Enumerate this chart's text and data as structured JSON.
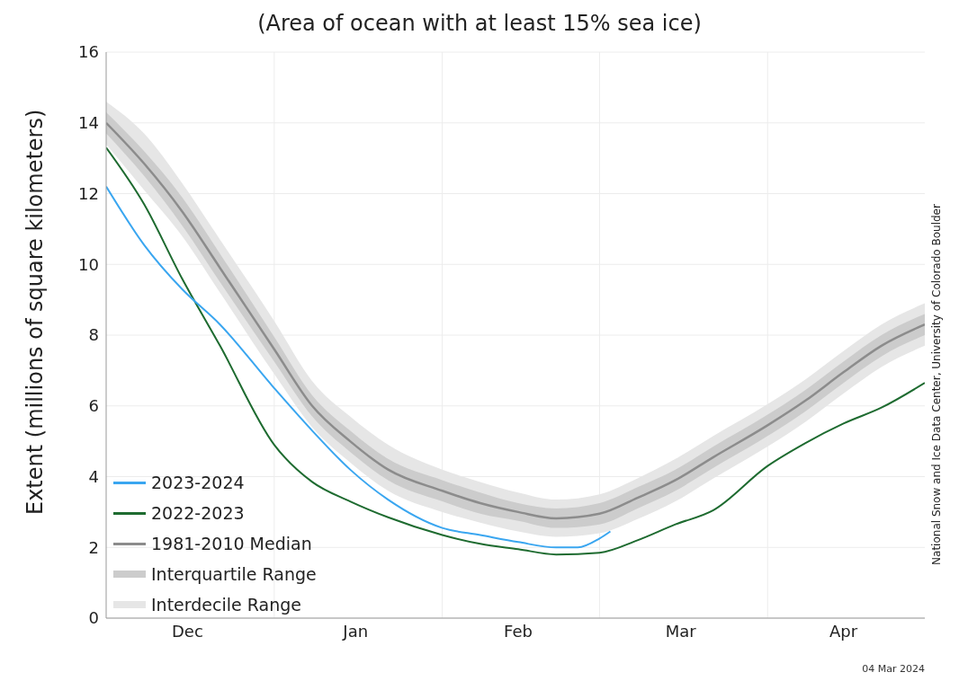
{
  "chart_data": {
    "type": "line",
    "subtitle": "(Area of ocean with at least 15% sea ice)",
    "ylabel": "Extent (millions of square kilometers)",
    "x": [
      "2023-12-01",
      "2023-12-08",
      "2023-12-15",
      "2023-12-22",
      "2024-01-01",
      "2024-01-08",
      "2024-01-15",
      "2024-01-22",
      "2024-02-01",
      "2024-02-08",
      "2024-02-15",
      "2024-02-22",
      "2024-03-01",
      "2024-03-08",
      "2024-03-15",
      "2024-03-22",
      "2024-04-01",
      "2024-04-08",
      "2024-04-15",
      "2024-04-22",
      "2024-04-30"
    ],
    "series": [
      {
        "name": "Interdecile Range",
        "color": "#e6e6e6",
        "values": [
          null,
          null,
          null,
          null,
          null,
          null,
          null,
          null,
          null,
          null,
          null,
          null,
          null,
          null,
          null,
          null,
          null,
          null,
          null,
          null,
          null
        ],
        "lower": [
          13.4,
          12.1,
          10.8,
          9.2,
          6.9,
          5.4,
          4.4,
          3.6,
          3.0,
          2.7,
          2.45,
          2.3,
          2.4,
          2.8,
          3.3,
          3.95,
          4.85,
          5.55,
          6.35,
          7.1,
          7.7
        ],
        "upper": [
          14.6,
          13.7,
          12.3,
          10.7,
          8.4,
          6.7,
          5.7,
          4.9,
          4.2,
          3.85,
          3.55,
          3.35,
          3.5,
          3.95,
          4.5,
          5.15,
          6.05,
          6.75,
          7.55,
          8.3,
          8.9
        ]
      },
      {
        "name": "Interquartile Range",
        "color": "#cccccc",
        "values": [
          null,
          null,
          null,
          null,
          null,
          null,
          null,
          null,
          null,
          null,
          null,
          null,
          null,
          null,
          null,
          null,
          null,
          null,
          null,
          null,
          null
        ],
        "lower": [
          13.7,
          12.5,
          11.1,
          9.5,
          7.25,
          5.7,
          4.7,
          3.9,
          3.3,
          2.95,
          2.75,
          2.55,
          2.65,
          3.1,
          3.6,
          4.25,
          5.15,
          5.85,
          6.65,
          7.4,
          8.0
        ],
        "upper": [
          14.3,
          13.2,
          11.9,
          10.3,
          7.95,
          6.3,
          5.3,
          4.5,
          3.9,
          3.55,
          3.25,
          3.1,
          3.25,
          3.7,
          4.2,
          4.85,
          5.75,
          6.45,
          7.25,
          8.0,
          8.6
        ]
      },
      {
        "name": "1981-2010 Median",
        "color": "#8c8c8c",
        "values": [
          14.0,
          12.85,
          11.5,
          9.9,
          7.6,
          6.0,
          5.0,
          4.2,
          3.6,
          3.25,
          3.0,
          2.82,
          2.95,
          3.4,
          3.9,
          4.55,
          5.45,
          6.15,
          6.95,
          7.7,
          8.3
        ]
      },
      {
        "name": "2022-2023",
        "color": "#1e6b30",
        "values": [
          13.3,
          11.7,
          9.6,
          7.7,
          4.9,
          3.85,
          3.3,
          2.85,
          2.35,
          2.1,
          1.95,
          1.8,
          1.85,
          2.2,
          2.65,
          3.05,
          4.3,
          4.95,
          5.5,
          5.95,
          6.65
        ]
      },
      {
        "name": "2023-2024",
        "color": "#3aa6f0",
        "x": [
          "2023-12-01",
          "2023-12-08",
          "2023-12-15",
          "2023-12-22",
          "2024-01-01",
          "2024-01-08",
          "2024-01-15",
          "2024-01-22",
          "2024-02-01",
          "2024-02-08",
          "2024-02-15",
          "2024-02-22",
          "2024-02-26",
          "2024-03-01",
          "2024-03-03"
        ],
        "values": [
          12.2,
          10.55,
          9.3,
          8.3,
          6.5,
          5.3,
          4.2,
          3.35,
          2.55,
          2.35,
          2.15,
          2.0,
          2.0,
          2.25,
          2.45
        ]
      }
    ],
    "xlim": [
      "2023-12-01",
      "2024-04-30"
    ],
    "xticks": [
      {
        "value": "2023-12-16",
        "label": "Dec"
      },
      {
        "value": "2024-01-16",
        "label": "Jan"
      },
      {
        "value": "2024-02-15",
        "label": "Feb"
      },
      {
        "value": "2024-03-16",
        "label": "Mar"
      },
      {
        "value": "2024-04-15",
        "label": "Apr"
      },
      {
        "value": "2024-01-01",
        "label": null
      },
      {
        "value": "2024-02-01",
        "label": null
      },
      {
        "value": "2024-03-01",
        "label": null
      },
      {
        "value": "2024-04-01",
        "label": null
      }
    ],
    "ylim": [
      0,
      16
    ],
    "yticks": [
      0,
      2,
      4,
      6,
      8,
      10,
      12,
      14,
      16
    ],
    "grid": true,
    "legend": "bottom left",
    "annotations": [
      "National Snow and Ice Data Center, University of Colorado Boulder",
      "04 Mar 2024"
    ]
  }
}
